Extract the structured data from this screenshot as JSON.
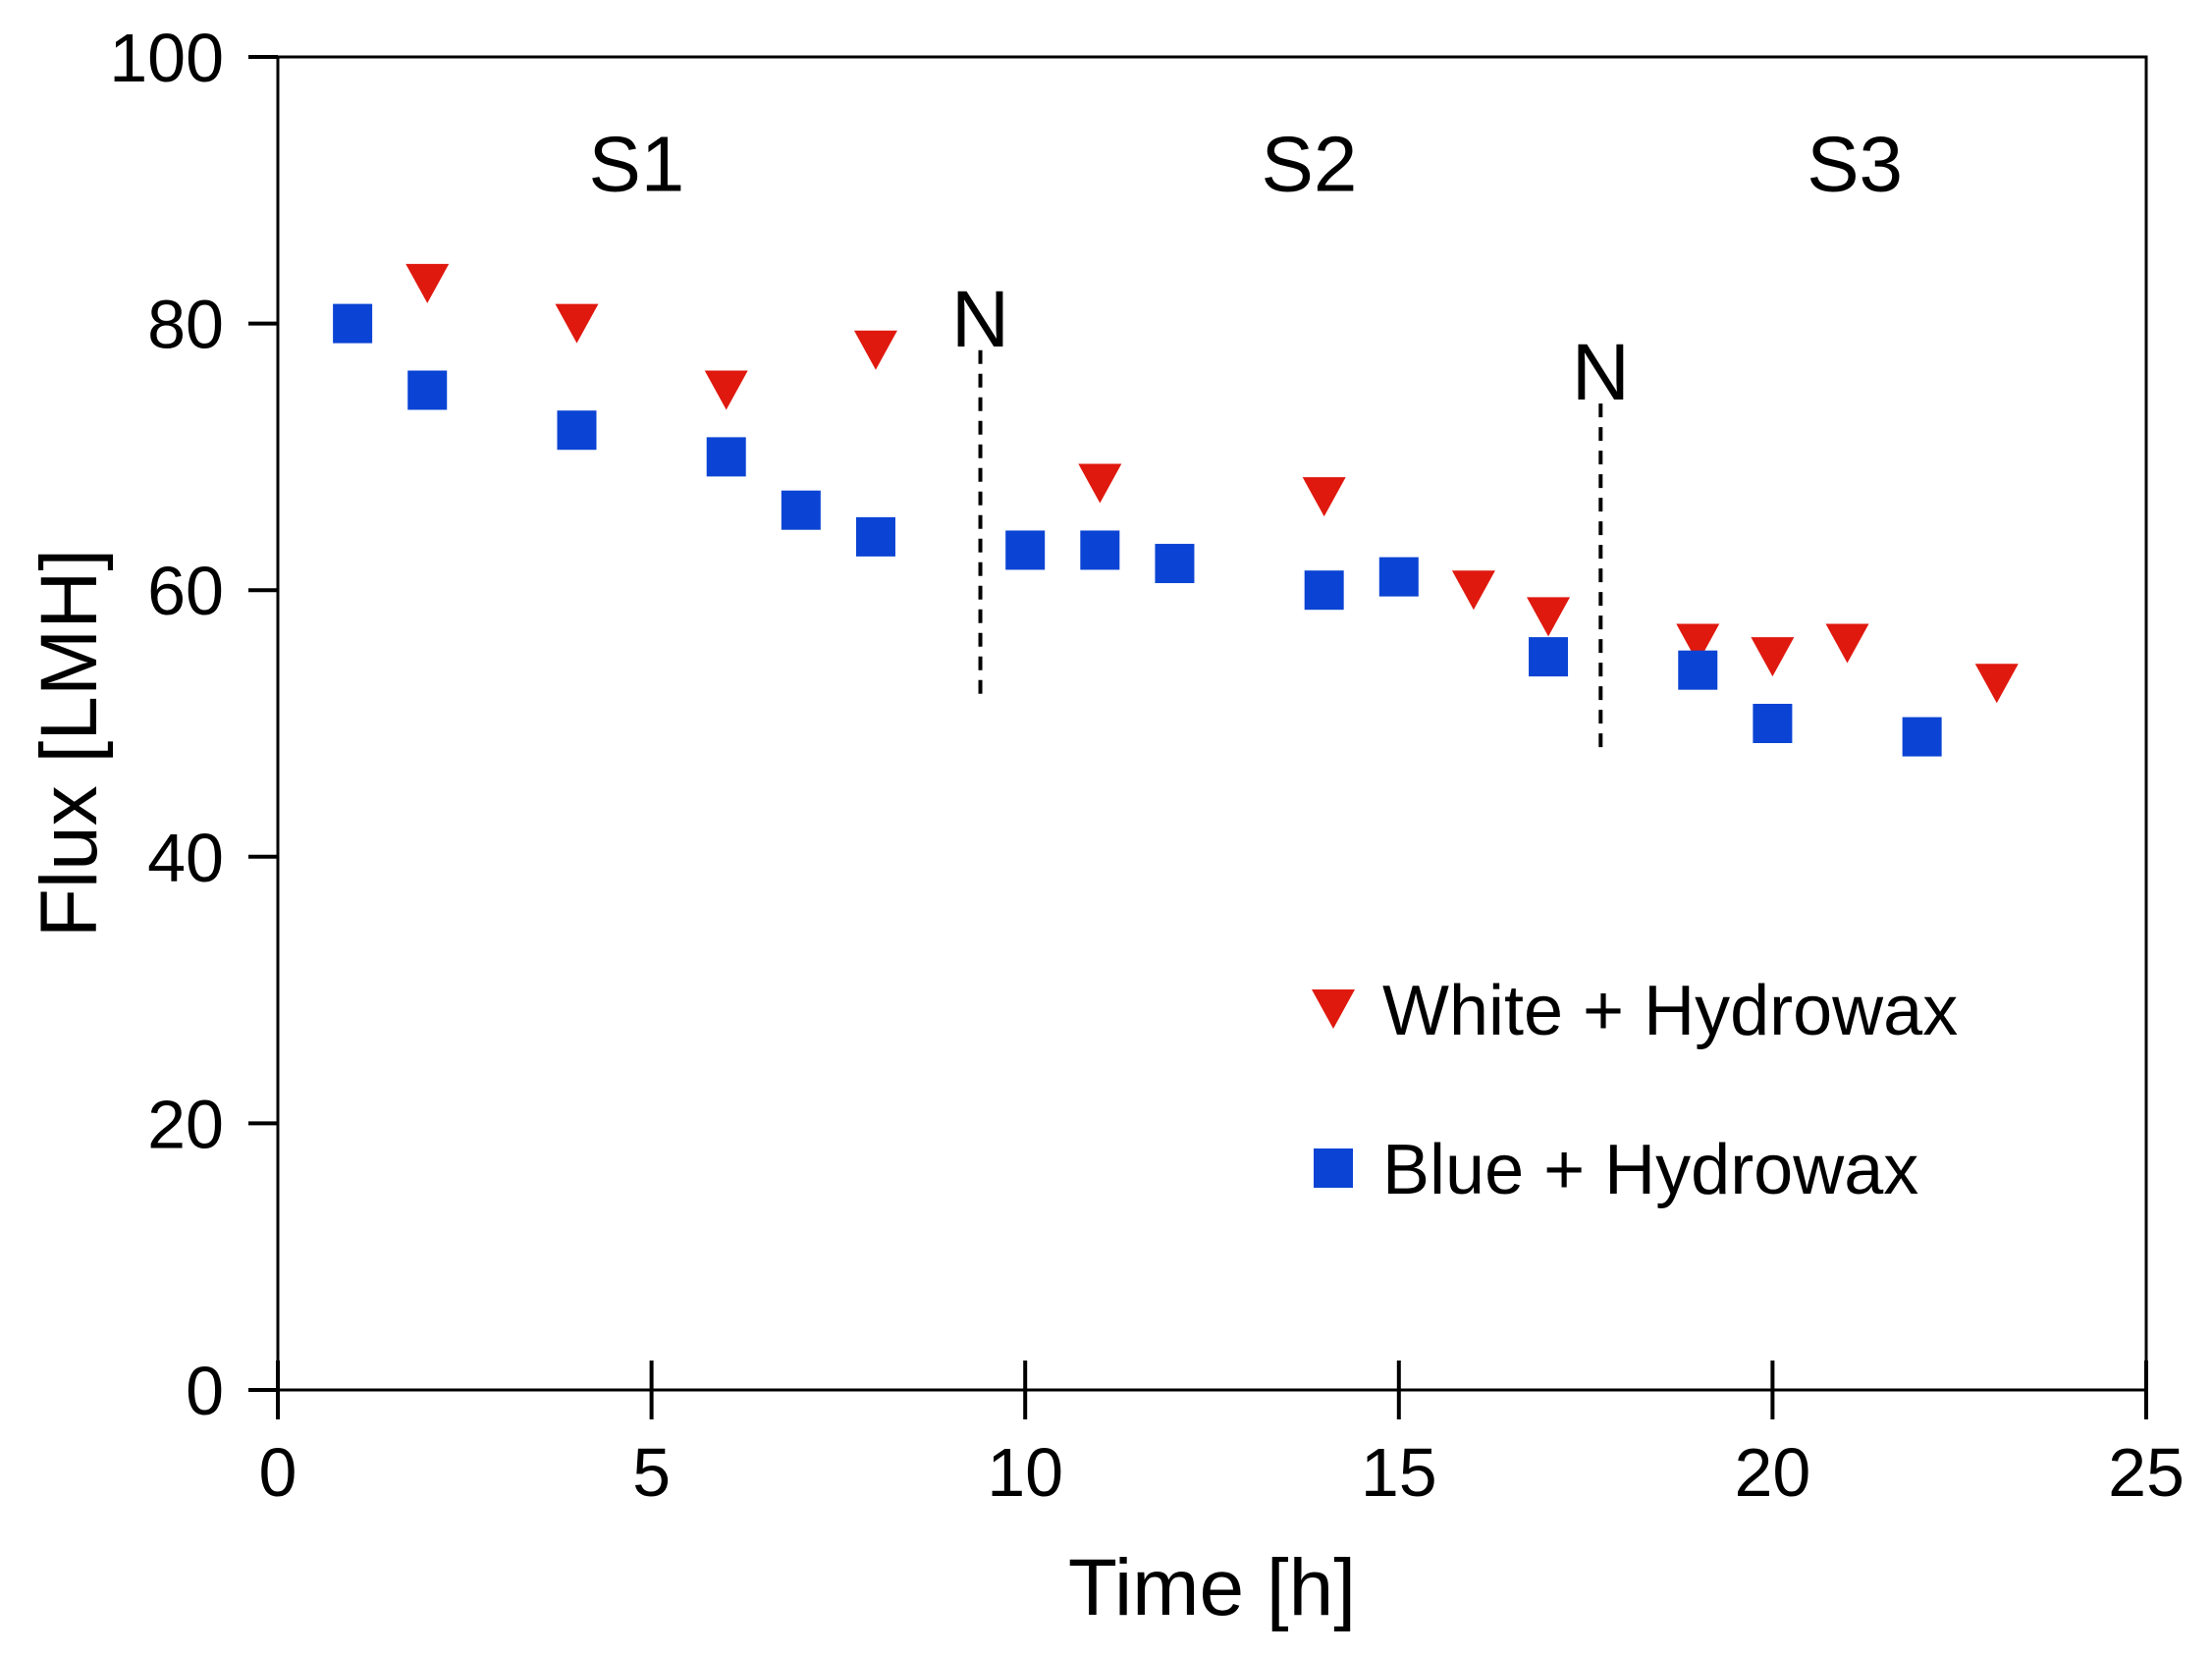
{
  "chart_data": {
    "type": "scatter",
    "title": "",
    "xlabel": "Time [h]",
    "ylabel": "Flux [LMH]",
    "xlim": [
      0,
      25
    ],
    "ylim": [
      0,
      100
    ],
    "xticks": [
      0,
      5,
      10,
      15,
      20,
      25
    ],
    "yticks": [
      0,
      20,
      40,
      60,
      80,
      100
    ],
    "grid": false,
    "legend_position": "center-right",
    "series": [
      {
        "name": "White + Hydrowax",
        "marker": "triangle-down",
        "color": "#e0190f",
        "x": [
          2,
          4,
          6,
          8,
          11,
          14,
          16,
          17,
          19,
          20,
          21,
          23
        ],
        "y": [
          83,
          80,
          75,
          78,
          68,
          67,
          60,
          58,
          56,
          55,
          56,
          53
        ]
      },
      {
        "name": "Blue + Hydrowax",
        "marker": "square",
        "color": "#0b44d4",
        "x": [
          1,
          2,
          4,
          6,
          7,
          8,
          10,
          11,
          12,
          14,
          15,
          17,
          19,
          20,
          22
        ],
        "y": [
          80,
          75,
          72,
          70,
          66,
          64,
          63,
          63,
          62,
          60,
          61,
          55,
          54,
          50,
          49
        ]
      }
    ],
    "annotations": {
      "stages": [
        {
          "label": "S1",
          "x": 4.8,
          "y": 92
        },
        {
          "label": "S2",
          "x": 13.8,
          "y": 92
        },
        {
          "label": "S3",
          "x": 21.1,
          "y": 92
        }
      ],
      "markers": [
        {
          "label": "N",
          "x": 9.4,
          "y_top": 78,
          "y_bottom": 52
        },
        {
          "label": "N",
          "x": 17.7,
          "y_top": 74,
          "y_bottom": 48
        }
      ]
    }
  }
}
